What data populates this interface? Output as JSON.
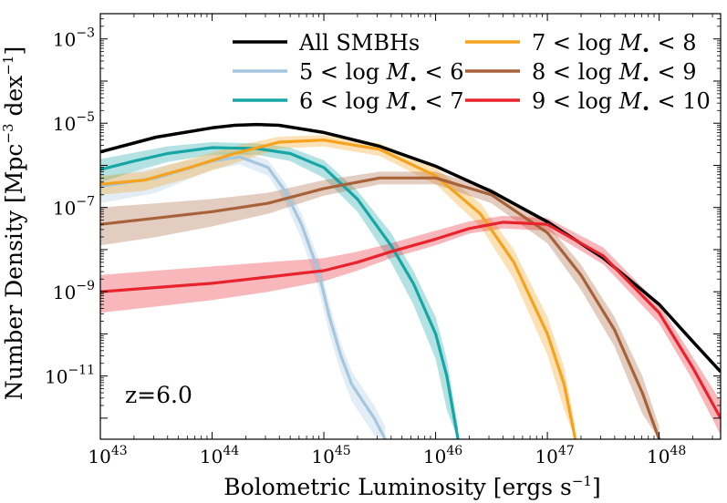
{
  "chart_data": {
    "type": "line",
    "xlabel_text": "Bolometric Luminosity [ergs s",
    "xlabel_exp": "−1",
    "xlabel_close": "]",
    "ylabel_text": "Number Density [Mpc",
    "ylabel_exp1": "−3",
    "ylabel_mid": " dex",
    "ylabel_exp2": "−1",
    "ylabel_close": "]",
    "x_scale": "log",
    "y_scale": "log",
    "xlim": [
      43.0,
      48.55
    ],
    "ylim": [
      -12.5,
      -2.4
    ],
    "x_ticks": [
      {
        "base": "10",
        "exp": "43",
        "value": 43
      },
      {
        "base": "10",
        "exp": "44",
        "value": 44
      },
      {
        "base": "10",
        "exp": "45",
        "value": 45
      },
      {
        "base": "10",
        "exp": "46",
        "value": 46
      },
      {
        "base": "10",
        "exp": "47",
        "value": 47
      },
      {
        "base": "10",
        "exp": "48",
        "value": 48
      }
    ],
    "y_ticks": [
      {
        "base": "10",
        "exp": "−3",
        "value": -3
      },
      {
        "base": "10",
        "exp": "−5",
        "value": -5
      },
      {
        "base": "10",
        "exp": "−7",
        "value": -7
      },
      {
        "base": "10",
        "exp": "−9",
        "value": -9
      },
      {
        "base": "10",
        "exp": "−11",
        "value": -11
      }
    ],
    "annotation": "z=6.0",
    "legend_placement": "top-right",
    "series": [
      {
        "name": "All SMBHs",
        "legend_parts": [
          "All SMBHs"
        ],
        "color": "#000000",
        "x": [
          43.0,
          43.5,
          44.0,
          44.2,
          44.4,
          44.6,
          45.0,
          45.5,
          46.0,
          46.5,
          47.0,
          47.5,
          48.0,
          48.3,
          48.55
        ],
        "y": [
          -5.68,
          -5.33,
          -5.11,
          -5.05,
          -5.03,
          -5.05,
          -5.22,
          -5.55,
          -6.02,
          -6.62,
          -7.34,
          -8.2,
          -9.3,
          -10.18,
          -10.9
        ],
        "band_lo": [],
        "band_hi": []
      },
      {
        "name": "5 < log M• < 6",
        "legend_parts": [
          "5",
          "log",
          "M",
          "•",
          "6"
        ],
        "color": "#a5c6df",
        "x": [
          43.0,
          43.5,
          44.0,
          44.25,
          44.5,
          44.65,
          44.8,
          44.95,
          45.05,
          45.15,
          45.25,
          45.35,
          45.45,
          45.55
        ],
        "y": [
          -6.5,
          -6.3,
          -5.9,
          -5.8,
          -6.05,
          -6.6,
          -7.4,
          -8.5,
          -9.6,
          -10.5,
          -11.2,
          -11.6,
          -12.0,
          -12.5
        ],
        "band_lo": [
          -6.9,
          -6.65,
          -6.1,
          -5.98,
          -6.25,
          -6.85,
          -7.75,
          -8.9,
          -10.0,
          -10.9,
          -11.6,
          -12.0,
          -12.4,
          -12.5
        ],
        "band_hi": [
          -6.3,
          -6.05,
          -5.75,
          -5.65,
          -5.88,
          -6.4,
          -7.15,
          -8.2,
          -9.3,
          -10.2,
          -10.9,
          -11.3,
          -11.7,
          -12.2
        ]
      },
      {
        "name": "6 < log M• < 7",
        "legend_parts": [
          "6",
          "log",
          "M",
          "•",
          "7"
        ],
        "color": "#17a6a6",
        "x": [
          43.0,
          43.3,
          43.6,
          44.0,
          44.4,
          44.7,
          45.0,
          45.3,
          45.6,
          45.8,
          46.0,
          46.1,
          46.2
        ],
        "y": [
          -6.1,
          -5.9,
          -5.72,
          -5.58,
          -5.6,
          -5.72,
          -6.05,
          -6.8,
          -7.9,
          -8.8,
          -10.0,
          -11.0,
          -12.5
        ],
        "band_lo": [
          -6.4,
          -6.15,
          -5.92,
          -5.75,
          -5.75,
          -5.9,
          -6.3,
          -7.1,
          -8.3,
          -9.3,
          -10.6,
          -11.8,
          -12.5
        ],
        "band_hi": [
          -5.85,
          -5.7,
          -5.55,
          -5.45,
          -5.48,
          -5.58,
          -5.88,
          -6.6,
          -7.6,
          -8.5,
          -9.6,
          -10.6,
          -12.2
        ]
      },
      {
        "name": "7 < log M• < 8",
        "legend_parts": [
          "7",
          "log",
          "M",
          "•",
          "8"
        ],
        "color": "#f5a21e",
        "x": [
          43.0,
          43.4,
          43.8,
          44.2,
          44.6,
          45.0,
          45.5,
          46.0,
          46.4,
          46.7,
          47.0,
          47.15,
          47.25
        ],
        "y": [
          -6.45,
          -6.35,
          -6.05,
          -5.72,
          -5.45,
          -5.4,
          -5.62,
          -6.25,
          -7.15,
          -8.3,
          -10.0,
          -11.2,
          -12.5
        ],
        "band_lo": [
          -6.7,
          -6.6,
          -6.3,
          -5.95,
          -5.6,
          -5.55,
          -5.78,
          -6.45,
          -7.45,
          -8.7,
          -10.5,
          -11.8,
          -12.5
        ],
        "band_hi": [
          -6.25,
          -6.15,
          -5.85,
          -5.55,
          -5.32,
          -5.28,
          -5.48,
          -6.05,
          -6.9,
          -8.0,
          -9.6,
          -10.8,
          -12.2
        ]
      },
      {
        "name": "8 < log M• < 9",
        "legend_parts": [
          "8",
          "log",
          "M",
          "•",
          "9"
        ],
        "color": "#a8623a",
        "x": [
          43.0,
          43.5,
          44.0,
          44.5,
          45.0,
          45.5,
          46.0,
          46.5,
          47.0,
          47.3,
          47.6,
          47.85,
          48.0
        ],
        "y": [
          -7.4,
          -7.25,
          -7.1,
          -6.9,
          -6.55,
          -6.3,
          -6.3,
          -6.7,
          -7.6,
          -8.6,
          -9.9,
          -11.4,
          -12.5
        ],
        "band_lo": [
          -7.9,
          -7.7,
          -7.45,
          -7.15,
          -6.72,
          -6.45,
          -6.45,
          -6.9,
          -7.85,
          -8.95,
          -10.3,
          -11.9,
          -12.5
        ],
        "band_hi": [
          -7.0,
          -6.9,
          -6.8,
          -6.65,
          -6.35,
          -6.15,
          -6.15,
          -6.55,
          -7.4,
          -8.35,
          -9.6,
          -11.0,
          -12.2
        ]
      },
      {
        "name": "9 < log M• < 10",
        "legend_parts": [
          "9",
          "log",
          "M",
          "•",
          "10"
        ],
        "color": "#e8232b",
        "x": [
          43.0,
          43.5,
          44.0,
          44.5,
          45.0,
          45.3,
          45.6,
          46.0,
          46.3,
          46.6,
          47.0,
          47.5,
          48.0,
          48.3,
          48.55
        ],
        "y": [
          -9.0,
          -8.9,
          -8.8,
          -8.65,
          -8.5,
          -8.3,
          -8.05,
          -7.75,
          -7.5,
          -7.35,
          -7.4,
          -8.15,
          -9.5,
          -10.8,
          -12.0
        ],
        "band_lo": [
          -9.5,
          -9.35,
          -9.2,
          -9.0,
          -8.75,
          -8.5,
          -8.2,
          -7.9,
          -7.62,
          -7.5,
          -7.55,
          -8.35,
          -9.75,
          -11.1,
          -12.4
        ],
        "band_hi": [
          -8.6,
          -8.5,
          -8.4,
          -8.3,
          -8.2,
          -8.05,
          -7.85,
          -7.55,
          -7.33,
          -7.2,
          -7.25,
          -7.95,
          -9.3,
          -10.55,
          -11.6
        ]
      }
    ]
  }
}
